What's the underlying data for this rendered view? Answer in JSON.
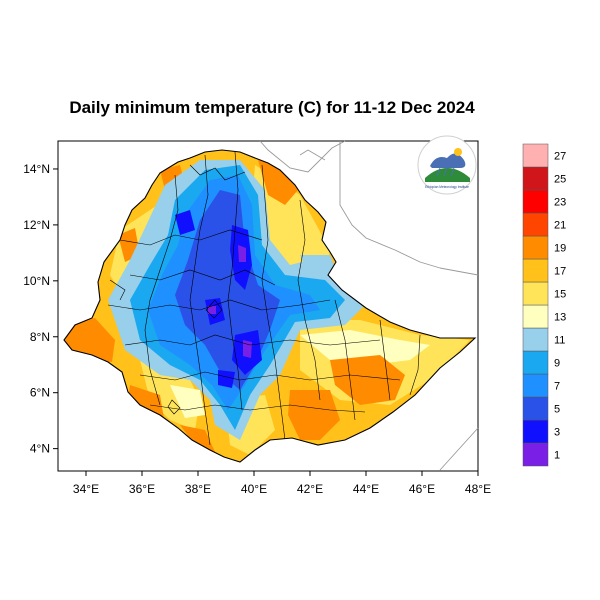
{
  "title": "Daily minimum temperature (C) for 11-12 Dec 2024",
  "map": {
    "x_ticks": [
      {
        "deg": 34,
        "label": "34°E"
      },
      {
        "deg": 36,
        "label": "36°E"
      },
      {
        "deg": 38,
        "label": "38°E"
      },
      {
        "deg": 40,
        "label": "40°E"
      },
      {
        "deg": 42,
        "label": "42°E"
      },
      {
        "deg": 44,
        "label": "44°E"
      },
      {
        "deg": 46,
        "label": "46°E"
      },
      {
        "deg": 48,
        "label": "48°E"
      }
    ],
    "y_ticks": [
      {
        "deg": 14,
        "label": "14°N"
      },
      {
        "deg": 12,
        "label": "12°N"
      },
      {
        "deg": 10,
        "label": "10°N"
      },
      {
        "deg": 8,
        "label": "8°N"
      },
      {
        "deg": 6,
        "label": "6°N"
      },
      {
        "deg": 4,
        "label": "4°N"
      }
    ],
    "lon_range": [
      33,
      48
    ],
    "lat_range": [
      3.2,
      15
    ]
  },
  "colorbar": {
    "colors": [
      "#7a1fe6",
      "#1010ff",
      "#2a52e8",
      "#1e90ff",
      "#1aa8f0",
      "#98cfea",
      "#ffffc0",
      "#ffe45a",
      "#ffc11a",
      "#ff8c00",
      "#ff4500",
      "#ff0000",
      "#d0161b",
      "#ffb0b0"
    ],
    "labels": [
      "1",
      "3",
      "5",
      "7",
      "9",
      "11",
      "13",
      "15",
      "17",
      "19",
      "21",
      "23",
      "25",
      "27"
    ]
  },
  "logo": {
    "text": "Ethiopian Meteorology Institute"
  }
}
